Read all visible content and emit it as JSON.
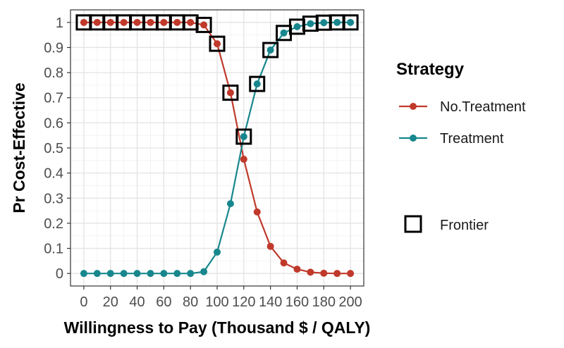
{
  "chart_data": {
    "type": "line",
    "xlabel": "Willingness to Pay (Thousand $ / QALY)",
    "ylabel": "Pr Cost-Effective",
    "x": [
      0,
      10,
      20,
      30,
      40,
      50,
      60,
      70,
      80,
      90,
      100,
      110,
      120,
      130,
      140,
      150,
      160,
      170,
      180,
      190,
      200
    ],
    "xticks": [
      "0",
      "20",
      "40",
      "60",
      "80",
      "100",
      "120",
      "140",
      "160",
      "180",
      "200"
    ],
    "xlim": [
      -10,
      210
    ],
    "yticks": [
      "0",
      "0.1",
      "0.2",
      "0.3",
      "0.4",
      "0.5",
      "0.6",
      "0.7",
      "0.8",
      "0.9",
      "1"
    ],
    "ylim": [
      -0.05,
      1.05
    ],
    "grid": true,
    "legend_position": "right",
    "series": [
      {
        "name": "No.Treatment",
        "color": "#c0392b",
        "values": [
          1,
          1,
          1,
          1,
          1,
          1,
          1,
          1,
          1,
          0.99,
          0.915,
          0.72,
          0.455,
          0.245,
          0.108,
          0.042,
          0.017,
          0.005,
          0.001,
          0.0,
          0.0
        ]
      },
      {
        "name": "Treatment",
        "color": "#17878d",
        "values": [
          0,
          0,
          0,
          0,
          0,
          0,
          0,
          0,
          0,
          0.007,
          0.085,
          0.278,
          0.545,
          0.755,
          0.89,
          0.958,
          0.983,
          0.995,
          0.999,
          1,
          1
        ]
      }
    ],
    "frontier": {
      "name": "Frontier",
      "x": [
        0,
        10,
        20,
        30,
        40,
        50,
        60,
        70,
        80,
        90,
        100,
        110,
        120,
        130,
        140,
        150,
        160,
        170,
        180,
        190,
        200
      ],
      "y": [
        1,
        1,
        1,
        1,
        1,
        1,
        1,
        1,
        1,
        0.99,
        0.915,
        0.72,
        0.545,
        0.755,
        0.89,
        0.958,
        0.983,
        0.995,
        0.999,
        1,
        1
      ]
    },
    "legend": {
      "title": "Strategy",
      "entries": [
        "No.Treatment",
        "Treatment"
      ],
      "frontier_label": "Frontier"
    }
  }
}
